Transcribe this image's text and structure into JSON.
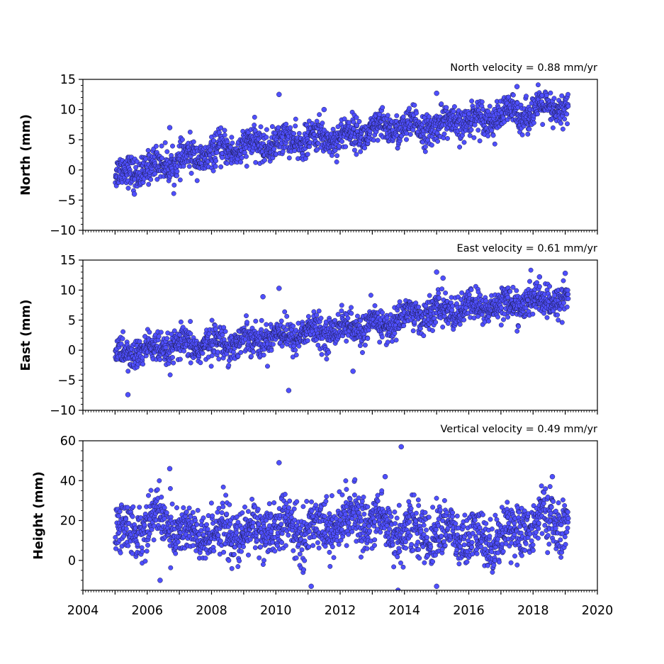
{
  "figure": {
    "x_tick_labels": [
      "2004",
      "2006",
      "2008",
      "2010",
      "2012",
      "2014",
      "2016",
      "2018",
      "2020"
    ]
  },
  "style": {
    "marker_fill": "#4f4fff",
    "marker_edge": "#1a1a4a"
  },
  "chart_data": [
    {
      "type": "scatter",
      "title": "North velocity = 0.88 mm/yr",
      "xlabel": "",
      "ylabel": "North (mm)",
      "xlim": [
        2004,
        2020
      ],
      "ylim": [
        -10,
        15
      ],
      "y_ticks": [
        -10,
        -5,
        0,
        5,
        10,
        15
      ],
      "y_tick_labels": [
        "−10",
        "−5",
        "0",
        "5",
        "10",
        "15"
      ],
      "time_span": [
        2005.0,
        2019.1
      ],
      "series": [
        {
          "values_summary": "daily positions, linear trend",
          "points": [
            [
              2005.0,
              -0.8
            ],
            [
              2005.5,
              -0.2
            ],
            [
              2006.0,
              0.2
            ],
            [
              2006.5,
              1.0
            ],
            [
              2007.0,
              1.5
            ],
            [
              2007.5,
              2.2
            ],
            [
              2008.0,
              2.6
            ],
            [
              2008.5,
              3.4
            ],
            [
              2009.0,
              3.8
            ],
            [
              2009.5,
              4.2
            ],
            [
              2010.0,
              4.5
            ],
            [
              2010.5,
              4.8
            ],
            [
              2011.0,
              5.0
            ],
            [
              2011.5,
              5.3
            ],
            [
              2012.0,
              5.6
            ],
            [
              2012.5,
              6.0
            ],
            [
              2013.0,
              6.4
            ],
            [
              2013.5,
              6.9
            ],
            [
              2014.0,
              7.1
            ],
            [
              2014.5,
              7.0
            ],
            [
              2015.0,
              7.3
            ],
            [
              2015.5,
              7.8
            ],
            [
              2016.0,
              8.2
            ],
            [
              2016.5,
              8.6
            ],
            [
              2017.0,
              9.0
            ],
            [
              2017.5,
              9.4
            ],
            [
              2018.0,
              9.8
            ],
            [
              2018.5,
              10.1
            ],
            [
              2019.0,
              10.3
            ],
            [
              2010.1,
              12.5
            ],
            [
              2011.5,
              10.0
            ],
            [
              2015.0,
              12.7
            ],
            [
              2017.5,
              13.8
            ],
            [
              2006.7,
              7.0
            ],
            [
              2005.6,
              -4.0
            ]
          ]
        }
      ]
    },
    {
      "type": "scatter",
      "title": "East velocity = 0.61 mm/yr",
      "xlabel": "",
      "ylabel": "East (mm)",
      "xlim": [
        2004,
        2020
      ],
      "ylim": [
        -10,
        15
      ],
      "y_ticks": [
        -10,
        -5,
        0,
        5,
        10,
        15
      ],
      "y_tick_labels": [
        "−10",
        "−5",
        "0",
        "5",
        "10",
        "15"
      ],
      "time_span": [
        2005.0,
        2019.1
      ],
      "series": [
        {
          "values_summary": "daily positions, linear trend with offset near 2014",
          "points": [
            [
              2005.0,
              -0.8
            ],
            [
              2005.5,
              -0.4
            ],
            [
              2006.0,
              0.0
            ],
            [
              2006.5,
              0.3
            ],
            [
              2007.0,
              0.5
            ],
            [
              2007.5,
              0.8
            ],
            [
              2008.0,
              1.0
            ],
            [
              2008.5,
              1.3
            ],
            [
              2009.0,
              1.6
            ],
            [
              2009.5,
              2.0
            ],
            [
              2010.0,
              2.4
            ],
            [
              2010.5,
              2.6
            ],
            [
              2011.0,
              2.9
            ],
            [
              2011.5,
              3.2
            ],
            [
              2012.0,
              3.5
            ],
            [
              2012.5,
              3.8
            ],
            [
              2013.0,
              4.0
            ],
            [
              2013.5,
              4.2
            ],
            [
              2014.0,
              5.8
            ],
            [
              2014.5,
              6.0
            ],
            [
              2015.0,
              6.3
            ],
            [
              2015.5,
              6.6
            ],
            [
              2016.0,
              7.0
            ],
            [
              2016.5,
              7.3
            ],
            [
              2017.0,
              7.5
            ],
            [
              2017.5,
              7.8
            ],
            [
              2018.0,
              8.0
            ],
            [
              2018.5,
              8.2
            ],
            [
              2019.0,
              8.4
            ],
            [
              2005.4,
              -7.4
            ],
            [
              2010.4,
              -6.7
            ],
            [
              2009.6,
              8.9
            ],
            [
              2010.1,
              10.3
            ],
            [
              2012.4,
              -3.5
            ],
            [
              2015.0,
              13.0
            ],
            [
              2015.2,
              12.0
            ],
            [
              2019.0,
              12.8
            ],
            [
              2018.2,
              12.2
            ]
          ]
        }
      ]
    },
    {
      "type": "scatter",
      "title": "Vertical velocity = 0.49 mm/yr",
      "xlabel": "",
      "ylabel": "Height (mm)",
      "xlim": [
        2004,
        2020
      ],
      "ylim": [
        -15,
        60
      ],
      "y_ticks": [
        0,
        20,
        40,
        60
      ],
      "y_tick_labels": [
        "0",
        "20",
        "40",
        "60"
      ],
      "time_span": [
        2005.0,
        2019.1
      ],
      "series": [
        {
          "values_summary": "daily positions, seasonal scatter",
          "points": [
            [
              2005.0,
              12
            ],
            [
              2005.5,
              16
            ],
            [
              2006.0,
              18
            ],
            [
              2006.5,
              22
            ],
            [
              2007.0,
              14
            ],
            [
              2007.5,
              12
            ],
            [
              2008.0,
              13
            ],
            [
              2008.5,
              15
            ],
            [
              2009.0,
              12
            ],
            [
              2009.5,
              16
            ],
            [
              2010.0,
              15
            ],
            [
              2010.5,
              17
            ],
            [
              2011.0,
              14
            ],
            [
              2011.5,
              19
            ],
            [
              2012.0,
              18
            ],
            [
              2012.5,
              22
            ],
            [
              2013.0,
              20
            ],
            [
              2013.5,
              17
            ],
            [
              2014.0,
              14
            ],
            [
              2014.5,
              15
            ],
            [
              2015.0,
              13
            ],
            [
              2015.5,
              14
            ],
            [
              2016.0,
              10
            ],
            [
              2016.5,
              9
            ],
            [
              2017.0,
              13
            ],
            [
              2017.5,
              15
            ],
            [
              2018.0,
              18
            ],
            [
              2018.5,
              22
            ],
            [
              2019.0,
              17
            ],
            [
              2006.7,
              46
            ],
            [
              2010.1,
              49
            ],
            [
              2013.9,
              57
            ],
            [
              2013.4,
              42
            ],
            [
              2018.6,
              42
            ],
            [
              2011.1,
              -13
            ],
            [
              2013.8,
              -15
            ],
            [
              2015.0,
              -13
            ],
            [
              2006.4,
              -10
            ]
          ]
        }
      ]
    }
  ]
}
